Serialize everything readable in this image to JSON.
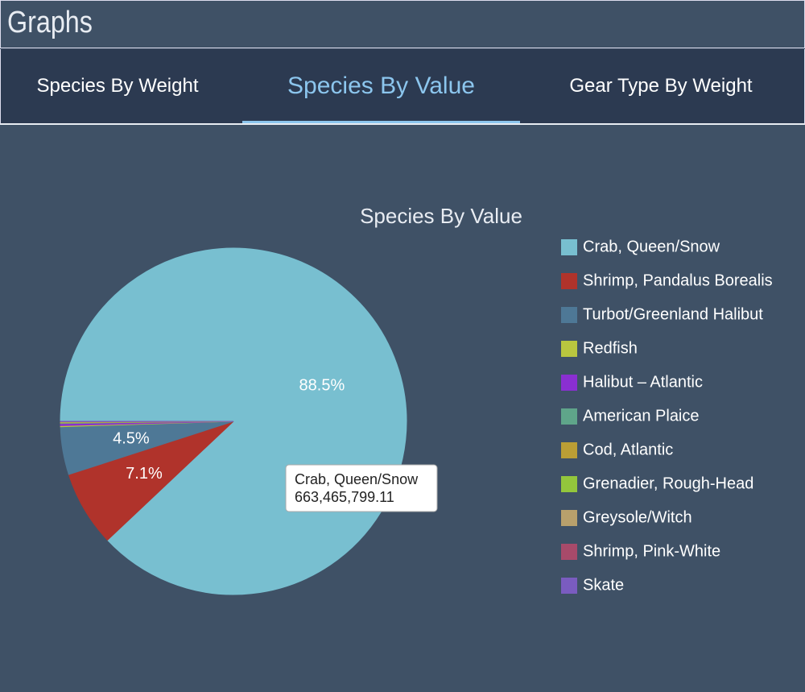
{
  "header": {
    "title": "Graphs"
  },
  "tabs": [
    {
      "label": "Species By Weight"
    },
    {
      "label": "Species By Value",
      "active": true
    },
    {
      "label": "Gear Type By Weight"
    }
  ],
  "chart_data": {
    "type": "pie",
    "title": "Species By Value",
    "categories": [
      "Crab, Queen/Snow",
      "Shrimp, Pandalus Borealis",
      "Turbot/Greenland Halibut",
      "Redfish",
      "Halibut – Atlantic",
      "American Plaice",
      "Cod, Atlantic",
      "Grenadier, Rough-Head",
      "Greysole/Witch",
      "Shrimp, Pink-White",
      "Skate"
    ],
    "values": [
      88.5,
      7.1,
      4.5,
      0.1,
      0.2,
      0.05,
      0.05,
      0.03,
      0.03,
      0.02,
      0.02
    ],
    "value_labels": [
      "88.5%",
      "7.1%",
      "4.5%",
      null,
      null,
      null,
      null,
      null,
      null,
      null,
      null
    ],
    "colors": [
      "#78bfd0",
      "#b0332b",
      "#4e7896",
      "#b9c63f",
      "#8a2fd1",
      "#5fa58a",
      "#bb9e35",
      "#93c63c",
      "#b8a06c",
      "#a84a6a",
      "#7a5cc0"
    ],
    "legend": "right",
    "tooltip": {
      "name": "Crab, Queen/Snow",
      "value_label": "663,465,799.11"
    }
  }
}
